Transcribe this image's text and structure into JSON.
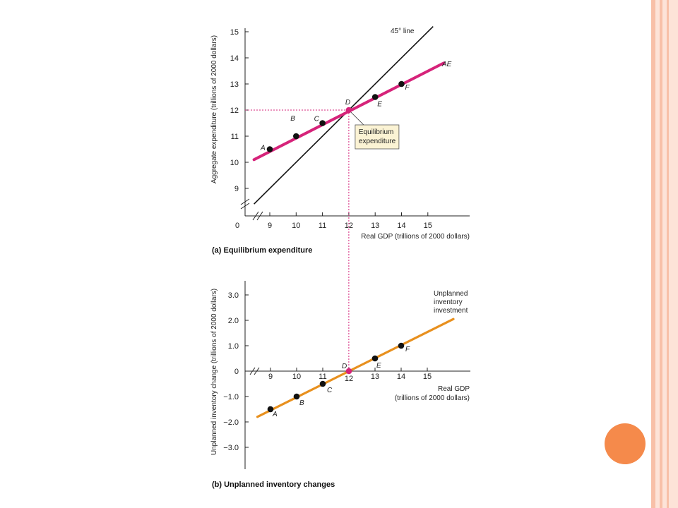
{
  "colors": {
    "border_light": "#fde3d8",
    "border_mid": "#f8c0a8",
    "accent_circle": "#f58a4b",
    "ae_line": "#d6237a",
    "inventory_line": "#e8901e",
    "guide_line": "#d6237a",
    "axis": "#222222",
    "annotation_box": "#fbf3d4",
    "point": "#111111"
  },
  "chart_data": [
    {
      "type": "line",
      "caption": "(a) Equilibrium expenditure",
      "xlabel": "Real GDP (trillions of 2000 dollars)",
      "ylabel": "Aggregate expenditure (trillions of 2000 dollars)",
      "x_ticks": [
        "0",
        "9",
        "10",
        "11",
        "12",
        "13",
        "14",
        "15"
      ],
      "y_ticks": [
        "9",
        "10",
        "11",
        "12",
        "13",
        "14",
        "15"
      ],
      "xlim": [
        8.2,
        15.6
      ],
      "ylim": [
        8.2,
        15.2
      ],
      "axis_break": true,
      "highlight_x": "12",
      "highlight_y": "12",
      "series": [
        {
          "name": "45° line",
          "x": [
            8.4,
            15.2
          ],
          "y": [
            8.4,
            15.2
          ]
        },
        {
          "name": "AE",
          "x": [
            8.4,
            15.6
          ],
          "y": [
            10.1,
            13.8
          ]
        }
      ],
      "points": [
        {
          "label": "A",
          "x": 9,
          "y": 10.5
        },
        {
          "label": "B",
          "x": 10,
          "y": 11.0
        },
        {
          "label": "C",
          "x": 11,
          "y": 11.5
        },
        {
          "label": "D",
          "x": 12,
          "y": 12.0
        },
        {
          "label": "E",
          "x": 13,
          "y": 12.5
        },
        {
          "label": "F",
          "x": 14,
          "y": 13.0
        }
      ],
      "annotation_lines": [
        "Equilibrium",
        "expenditure"
      ]
    },
    {
      "type": "line",
      "caption": "(b) Unplanned inventory changes",
      "xlabel_lines": [
        "Real GDP",
        "(trillions of 2000 dollars)"
      ],
      "ylabel": "Unplanned inventory change (trillions of 2000 dollars)",
      "x_ticks": [
        "9",
        "10",
        "11",
        "12",
        "13",
        "14",
        "15"
      ],
      "y_ticks": [
        "3.0",
        "2.0",
        "1.0",
        "0",
        "−1.0",
        "−2.0",
        "−3.0"
      ],
      "y_tick_values": [
        3,
        2,
        1,
        0,
        -1,
        -2,
        -3
      ],
      "xlim": [
        8.2,
        16.5
      ],
      "ylim": [
        -3.9,
        3.9
      ],
      "axis_break": true,
      "highlight_x": "12",
      "series": [
        {
          "name": "Unplanned inventory investment",
          "x": [
            8.5,
            16.0
          ],
          "y": [
            -1.8,
            2.05
          ]
        }
      ],
      "series_label_lines": [
        "Unplanned",
        "inventory",
        "investment"
      ],
      "points": [
        {
          "label": "A",
          "x": 9,
          "y": -1.5
        },
        {
          "label": "B",
          "x": 10,
          "y": -1.0
        },
        {
          "label": "C",
          "x": 11,
          "y": -0.5
        },
        {
          "label": "D",
          "x": 12,
          "y": 0
        },
        {
          "label": "E",
          "x": 13,
          "y": 0.5
        },
        {
          "label": "F",
          "x": 14,
          "y": 1.0
        }
      ]
    }
  ]
}
